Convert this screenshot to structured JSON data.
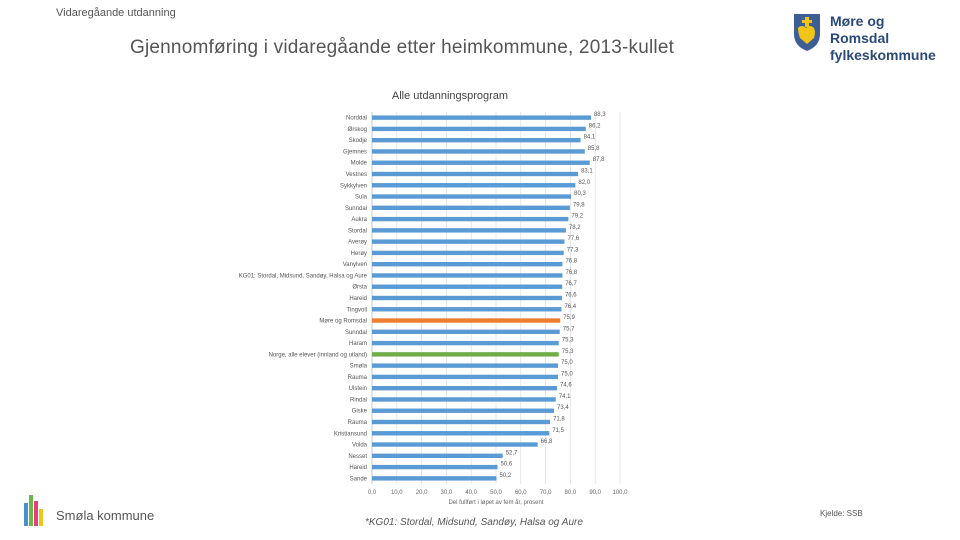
{
  "header": {
    "section": "Vidaregåande utdanning"
  },
  "title": "Gjennomføring i vidaregåande etter heimkommune, 2013-kullet",
  "logo": {
    "line1": "Møre og Romsdal",
    "line2": "fylkeskommune",
    "icon": "coat-of-arms-icon"
  },
  "footer": {
    "municipality": "Smøla kommune",
    "footnote": "*KG01: Stordal, Midsund, Sandøy, Halsa og Aure",
    "source": "Kjelde: SSB"
  },
  "colors": {
    "bar": "#5b9bd5",
    "highlight_county": "#ed7d31",
    "highlight_national": "#70ad47",
    "grid": "#d9d9d9"
  },
  "chart_data": {
    "type": "bar",
    "orientation": "horizontal",
    "title": "Alle utdanningsprogram",
    "xlabel": "Del fullført i løpet av fem år, prosent",
    "xlim": [
      0,
      100
    ],
    "xticks": [
      "0,0",
      "10,0",
      "20,0",
      "30,0",
      "40,0",
      "50,0",
      "60,0",
      "70,0",
      "80,0",
      "90,0",
      "100,0"
    ],
    "grid": true,
    "categories": [
      "Norddal",
      "Ørskog",
      "Skodje",
      "Gjemnes",
      "Molde",
      "Vestnes",
      "Sykkylven",
      "Sula",
      "Sunndal",
      "Aukra",
      "Stordal",
      "Averøy",
      "Herøy",
      "Vanylven",
      "KG01: Stordal, Midsund, Sandøy, Halsa og Aure",
      "Ørsta",
      "Hareid",
      "Tingvoll",
      "Møre og Romsdal",
      "Sunndal",
      "Haram",
      "Norge, alle elever (innland og utland)",
      "Smøla",
      "Rauma",
      "Ulstein",
      "Rindal",
      "Giske",
      "Rauma",
      "Kristiansund",
      "Volda",
      "Nesset",
      "Hareid",
      "Sande"
    ],
    "labels": [
      "88,3",
      "86,2",
      "84,1",
      "85,8",
      "87,8",
      "83,1",
      "82,0",
      "80,3",
      "79,8",
      "79,2",
      "78,2",
      "77,6",
      "77,3",
      "76,8",
      "76,8",
      "76,7",
      "76,6",
      "76,4",
      "75,9",
      "75,7",
      "75,3",
      "75,3",
      "75,0",
      "75,0",
      "74,6",
      "74,1",
      "73,4",
      "71,8",
      "71,5",
      "66,8",
      "52,7",
      "50,6",
      "50,2"
    ],
    "values": [
      88.3,
      86.2,
      84.1,
      85.8,
      87.8,
      83.1,
      82.0,
      80.3,
      79.8,
      79.2,
      78.2,
      77.6,
      77.3,
      76.8,
      76.8,
      76.7,
      76.6,
      76.4,
      75.9,
      75.7,
      75.3,
      75.3,
      75.0,
      75.0,
      74.6,
      74.1,
      73.4,
      71.8,
      71.5,
      66.8,
      52.7,
      50.6,
      50.2
    ],
    "highlight": {
      "18": "county",
      "21": "national"
    }
  }
}
